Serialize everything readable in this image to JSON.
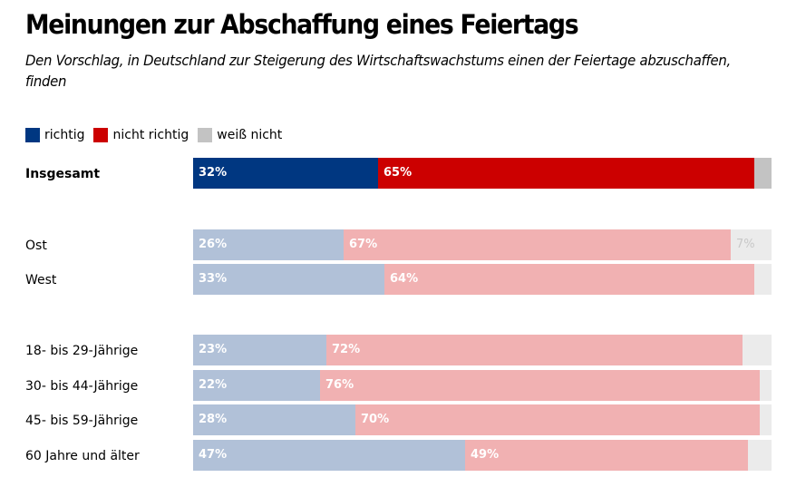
{
  "chart_data": {
    "type": "bar",
    "orientation": "horizontal-stacked",
    "title": "Meinungen zur Abschaffung eines Feiertags",
    "subtitle": "Den Vorschlag, in Deutschland zur Steigerung des Wirtschaftswachstums einen der Feiertage abzuschaffen, finden",
    "xlim": [
      0,
      100
    ],
    "unit": "%",
    "legend_position": "top-left",
    "series": [
      {
        "name": "richtig",
        "color": "#003781",
        "muted_color": "#b1c1d8"
      },
      {
        "name": "nicht richtig",
        "color": "#cc0000",
        "muted_color": "#f1b1b2"
      },
      {
        "name": "weiß nicht",
        "color": "#c3c3c3",
        "muted_color": "#ebebeb"
      }
    ],
    "rows": [
      {
        "label": "Insgesamt",
        "highlight": true,
        "values": [
          32,
          65,
          3
        ],
        "labels": [
          "32%",
          "65%",
          ""
        ]
      },
      {
        "label": "Ost",
        "highlight": false,
        "values": [
          26,
          67,
          7
        ],
        "labels": [
          "26%",
          "67%",
          "7%"
        ]
      },
      {
        "label": "West",
        "highlight": false,
        "values": [
          33,
          64,
          3
        ],
        "labels": [
          "33%",
          "64%",
          ""
        ]
      },
      {
        "label": "18- bis 29-Jährige",
        "highlight": false,
        "values": [
          23,
          72,
          5
        ],
        "labels": [
          "23%",
          "72%",
          ""
        ]
      },
      {
        "label": "30- bis 44-Jährige",
        "highlight": false,
        "values": [
          22,
          76,
          2
        ],
        "labels": [
          "22%",
          "76%",
          ""
        ]
      },
      {
        "label": "45- bis 59-Jährige",
        "highlight": false,
        "values": [
          28,
          70,
          2
        ],
        "labels": [
          "28%",
          "70%",
          ""
        ]
      },
      {
        "label": "60 Jahre und älter",
        "highlight": false,
        "values": [
          47,
          49,
          4
        ],
        "labels": [
          "47%",
          "49%",
          ""
        ]
      }
    ]
  }
}
